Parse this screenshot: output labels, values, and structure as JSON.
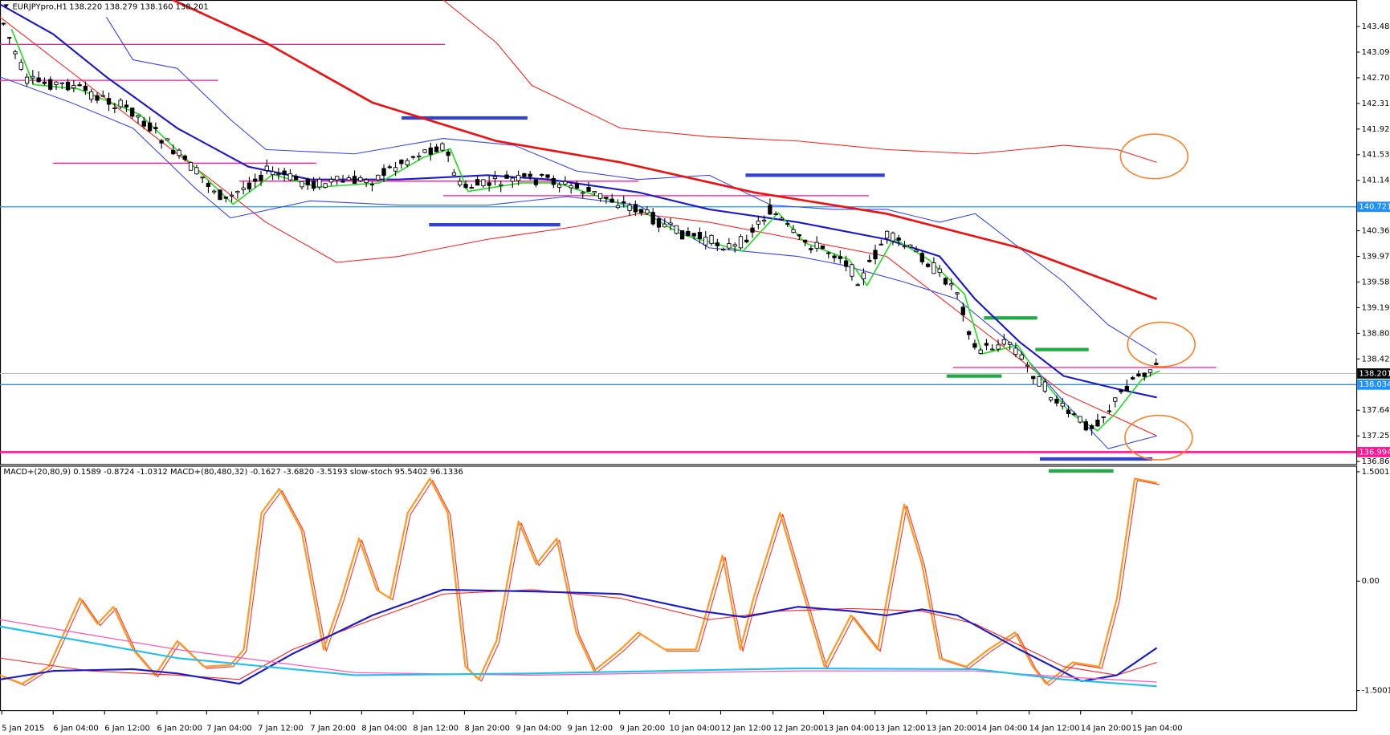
{
  "header": {
    "symbol": "EURJPYpro,H1",
    "ohlc": "138.220 138.279 138.160 138.201"
  },
  "indicator_header": "MACD+(20,80,9) 0.1589 -0.8724 -1.0312  MACD+(80,480,32) -0.1627 -3.6820 -3.5193  slow-stoch 95.5402 96.1336",
  "price_axis": [
    "143.480",
    "143.090",
    "142.700",
    "142.310",
    "141.920",
    "141.530",
    "141.140",
    "140.360",
    "139.970",
    "139.580",
    "139.190",
    "138.800",
    "138.420",
    "137.640",
    "137.250",
    "136.860"
  ],
  "price_tags": [
    "140.721",
    "138.201",
    "138.034",
    "136.994"
  ],
  "indicator_axis": [
    "1.5001",
    "0.00",
    "-1.5001"
  ],
  "time_axis": [
    "5 Jan 2015",
    "6 Jan 04:00",
    "6 Jan 12:00",
    "6 Jan 20:00",
    "7 Jan 04:00",
    "7 Jan 12:00",
    "7 Jan 20:00",
    "8 Jan 04:00",
    "8 Jan 12:00",
    "8 Jan 20:00",
    "9 Jan 04:00",
    "9 Jan 12:00",
    "9 Jan 20:00",
    "10 Jan 04:00",
    "12 Jan 12:00",
    "12 Jan 20:00",
    "13 Jan 04:00",
    "13 Jan 12:00",
    "13 Jan 20:00",
    "14 Jan 04:00",
    "14 Jan 12:00",
    "14 Jan 20:00",
    "15 Jan 04:00"
  ]
}
